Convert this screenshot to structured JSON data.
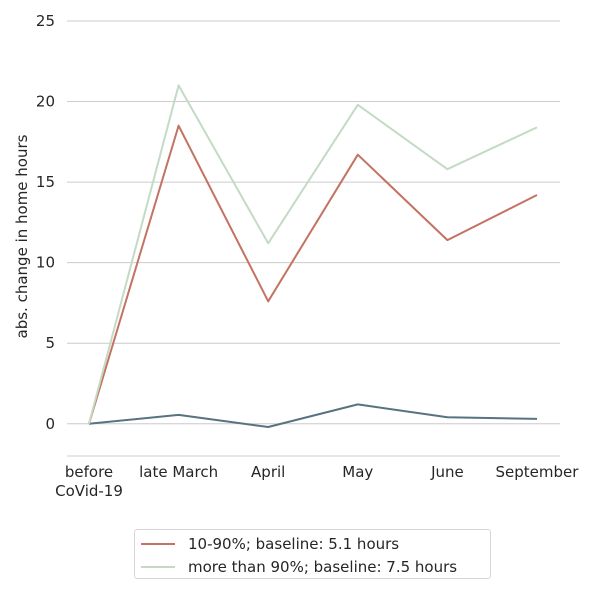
{
  "chart_data": {
    "type": "line",
    "title": "",
    "xlabel": "",
    "ylabel": "abs. change in home hours",
    "categories": [
      [
        "before",
        "CoVid-19"
      ],
      [
        "late March"
      ],
      [
        "April"
      ],
      [
        "May"
      ],
      [
        "June"
      ],
      [
        "September"
      ]
    ],
    "ylim": [
      -2,
      25
    ],
    "yticks": [
      0,
      5,
      10,
      15,
      20,
      25
    ],
    "grid": "horizontal",
    "legend_position": "bottom",
    "series": [
      {
        "name": "",
        "color": "#56737f",
        "values": [
          0,
          0.55,
          -0.2,
          1.2,
          0.4,
          0.3
        ],
        "in_legend": false
      },
      {
        "name": "10-90%; baseline: 5.1 hours",
        "color": "#c47262",
        "values": [
          0,
          18.5,
          7.6,
          16.7,
          11.4,
          14.2
        ],
        "in_legend": true
      },
      {
        "name": "more than 90%; baseline: 7.5 hours",
        "color": "#c3dbc4",
        "values": [
          0,
          21.0,
          11.2,
          19.8,
          15.8,
          18.4
        ],
        "in_legend": true
      }
    ]
  }
}
